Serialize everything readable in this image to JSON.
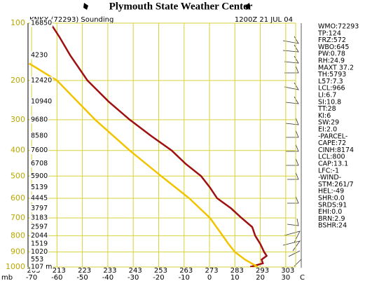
{
  "chart_data": {
    "type": "line",
    "title": "Plymouth State Weather Center",
    "subtitle": "KNKX (72293) Sounding",
    "date": "1200Z 21 JUL 04",
    "y_label": "mb",
    "x_label": "C",
    "ylim": [
      1000,
      100
    ],
    "yticks": [
      100,
      200,
      300,
      400,
      500,
      600,
      700,
      800,
      900,
      1000
    ],
    "xlim": [
      -71.4,
      33.9
    ],
    "xticks": [
      -70,
      -60,
      -50,
      -40,
      -30,
      -20,
      -10,
      0,
      10,
      20,
      30
    ],
    "xticks_kelvin": [
      203,
      213,
      223,
      233,
      243,
      253,
      263,
      273,
      283,
      293,
      303
    ],
    "height_levels": [
      100,
      150,
      200,
      250,
      300,
      350,
      400,
      450,
      500,
      550,
      600,
      650,
      700,
      750,
      800,
      850,
      900,
      950,
      1000
    ],
    "height_labels": [
      "16850",
      "4230",
      "12420",
      "10940",
      "9680",
      "8580",
      "7600",
      "6708",
      "5900",
      "5139",
      "4445",
      "3797",
      "3183",
      "2597",
      "2044",
      "1519",
      "1020",
      "553",
      "107 m"
    ],
    "grid": true,
    "series": [
      {
        "color": "#a01010",
        "pressures": [
          1000,
          975,
          950,
          925,
          900,
          850,
          800,
          750,
          700,
          650,
          600,
          550,
          500,
          450,
          400,
          350,
          300,
          250,
          200,
          150,
          120,
          100
        ],
        "values": [
          16,
          21,
          20.5,
          22.5,
          21.5,
          20,
          18,
          16.8,
          12.6,
          8.5,
          3,
          0.2,
          -3.3,
          -9.4,
          -14.9,
          -23,
          -31.4,
          -39.7,
          -48,
          -54.8,
          -59,
          -62.6
        ]
      },
      {
        "color": "#f2c400",
        "pressures": [
          1000,
          950,
          900,
          850,
          800,
          700,
          600,
          500,
          400,
          300,
          200,
          165
        ],
        "values": [
          19,
          14,
          10,
          7.5,
          5.2,
          0.2,
          -8,
          -19,
          -31.4,
          -45,
          -60,
          -71
        ]
      }
    ],
    "indices": [
      "WMO:72293",
      "TP:124",
      "FRZ:572",
      "WBO:645",
      "PW:0.78",
      "RH:24.9",
      "MAXT 37.2",
      "TH:5793",
      "L57:7.3",
      "LCL:966",
      "LI:6.7",
      "SI:10.8",
      "TT:28",
      "KI:6",
      "SW:29",
      "EI:2.0",
      "-PARCEL-",
      "CAPE:72",
      "CINH:8174",
      "LCL:800",
      "CAP:13.1",
      "LFC:-1",
      "-WIND-",
      "STM:261/7",
      "HEL:-49",
      "SHR:0.0",
      "SRDS:91",
      "EHI:0.0",
      "BRN:2.9",
      "BSHR:24"
    ]
  }
}
